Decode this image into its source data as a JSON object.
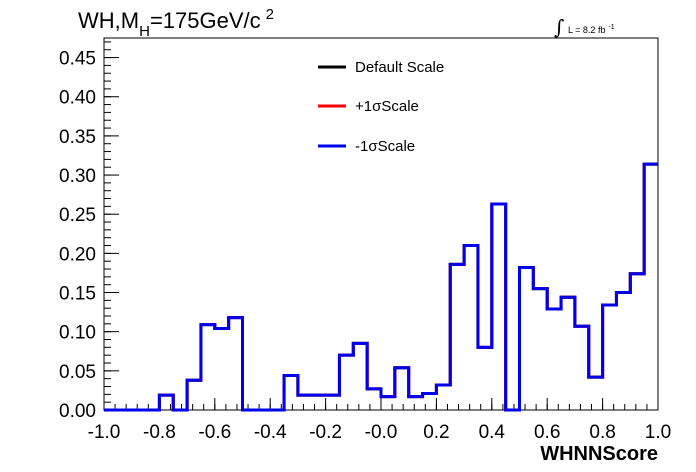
{
  "chart_data": {
    "type": "line",
    "title": {
      "main": "WH,M",
      "subscript": "H",
      "rest": "=175GeV/c",
      "superscript": "2"
    },
    "luminosity": {
      "text": "L = 8.2 fb",
      "superscript": "-1"
    },
    "xlabel": "WHNNScore",
    "ylabel": "",
    "xlim": [
      -1.0,
      1.0
    ],
    "ylim": [
      0.0,
      0.475
    ],
    "x_ticks": [
      "-1.0",
      "-0.8",
      "-0.6",
      "-0.4",
      "-0.2",
      "-0.0",
      "0.2",
      "0.4",
      "0.6",
      "0.8",
      "1.0"
    ],
    "x_tick_values": [
      -1.0,
      -0.8,
      -0.6,
      -0.4,
      -0.2,
      0.0,
      0.2,
      0.4,
      0.6,
      0.8,
      1.0
    ],
    "y_ticks": [
      "0.00",
      "0.05",
      "0.10",
      "0.15",
      "0.20",
      "0.25",
      "0.30",
      "0.35",
      "0.40",
      "0.45"
    ],
    "y_tick_values": [
      0.0,
      0.05,
      0.1,
      0.15,
      0.2,
      0.25,
      0.3,
      0.35,
      0.4,
      0.45
    ],
    "grid": false,
    "legend_position": "top-center",
    "bin_edges": [
      -1.0,
      -0.95,
      -0.9,
      -0.85,
      -0.8,
      -0.75,
      -0.7,
      -0.65,
      -0.6,
      -0.55,
      -0.5,
      -0.45,
      -0.4,
      -0.35,
      -0.3,
      -0.25,
      -0.2,
      -0.15,
      -0.1,
      -0.05,
      0.0,
      0.05,
      0.1,
      0.15,
      0.2,
      0.25,
      0.3,
      0.35,
      0.4,
      0.45,
      0.5,
      0.55,
      0.6,
      0.65,
      0.7,
      0.75,
      0.8,
      0.85,
      0.9,
      0.95,
      1.0
    ],
    "series": [
      {
        "name": "Default Scale",
        "color": "#000000",
        "values": [
          0,
          0,
          0,
          0,
          0.019,
          0,
          0.038,
          0.109,
          0.104,
          0.118,
          0,
          0,
          0,
          0.044,
          0.019,
          0.019,
          0.019,
          0.07,
          0.085,
          0.027,
          0.017,
          0.054,
          0.017,
          0.021,
          0.032,
          0.186,
          0.21,
          0.08,
          0.263,
          0,
          0.182,
          0.155,
          0.129,
          0.144,
          0.107,
          0.042,
          0.134,
          0.15,
          0.174,
          0.314
        ]
      },
      {
        "name": "+1σScale",
        "color": "#ff0000",
        "values": [
          0,
          0,
          0,
          0,
          0.019,
          0,
          0.038,
          0.109,
          0.104,
          0.118,
          0,
          0,
          0,
          0.044,
          0.019,
          0.019,
          0.019,
          0.07,
          0.085,
          0.027,
          0.017,
          0.054,
          0.017,
          0.021,
          0.032,
          0.186,
          0.21,
          0.08,
          0.263,
          0,
          0.182,
          0.155,
          0.129,
          0.144,
          0.107,
          0.042,
          0.134,
          0.15,
          0.174,
          0.314
        ]
      },
      {
        "name": "-1σScale",
        "color": "#0000ee",
        "values": [
          0,
          0,
          0,
          0,
          0.019,
          0,
          0.038,
          0.109,
          0.104,
          0.118,
          0,
          0,
          0,
          0.044,
          0.019,
          0.019,
          0.019,
          0.07,
          0.085,
          0.027,
          0.017,
          0.054,
          0.017,
          0.021,
          0.032,
          0.186,
          0.21,
          0.08,
          0.263,
          0,
          0.182,
          0.155,
          0.129,
          0.144,
          0.107,
          0.042,
          0.134,
          0.15,
          0.174,
          0.314
        ]
      }
    ]
  }
}
